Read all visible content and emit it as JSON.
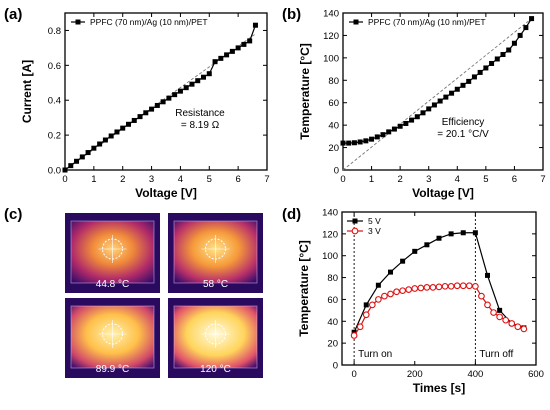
{
  "panels": {
    "a": {
      "letter": "(a)"
    },
    "b": {
      "letter": "(b)"
    },
    "c": {
      "letter": "(c)"
    },
    "d": {
      "letter": "(d)"
    }
  },
  "chart_data": [
    {
      "panel": "(a)",
      "type": "line",
      "title": "",
      "xlabel": "Voltage [V]",
      "ylabel": "Current [A]",
      "xlim": [
        0,
        7
      ],
      "ylim": [
        0,
        0.9
      ],
      "xticks": [
        "0",
        "1",
        "2",
        "3",
        "4",
        "5",
        "6",
        "7"
      ],
      "yticks": [
        "0.0",
        "0.2",
        "0.4",
        "0.6",
        "0.8"
      ],
      "legend": {
        "entries": [
          "PPFC (70 nm)/Ag (10 nm)/PET"
        ],
        "placement": "top-left"
      },
      "annotation": {
        "line1": "Resistance",
        "line2": "= 8.19 Ω"
      },
      "fit_line": {
        "style": "dashed",
        "x": [
          0,
          6.6
        ],
        "y": [
          0,
          0.78
        ]
      },
      "series": [
        {
          "name": "PPFC (70 nm)/Ag (10 nm)/PET",
          "marker": "square",
          "x": [
            0,
            0.2,
            0.4,
            0.6,
            0.8,
            1.0,
            1.2,
            1.4,
            1.6,
            1.8,
            2.0,
            2.2,
            2.4,
            2.6,
            2.8,
            3.0,
            3.2,
            3.4,
            3.6,
            3.8,
            4.0,
            4.2,
            4.4,
            4.6,
            4.8,
            5.0,
            5.2,
            5.4,
            5.6,
            5.8,
            6.0,
            6.2,
            6.4,
            6.6
          ],
          "y": [
            0,
            0.025,
            0.05,
            0.075,
            0.1,
            0.125,
            0.149,
            0.172,
            0.195,
            0.218,
            0.24,
            0.262,
            0.284,
            0.306,
            0.328,
            0.349,
            0.37,
            0.391,
            0.412,
            0.432,
            0.452,
            0.472,
            0.492,
            0.512,
            0.532,
            0.552,
            0.621,
            0.64,
            0.66,
            0.68,
            0.7,
            0.72,
            0.74,
            0.83
          ]
        }
      ]
    },
    {
      "panel": "(b)",
      "type": "line",
      "title": "",
      "xlabel": "Voltage [V]",
      "ylabel": "Temperature [°C]",
      "xlim": [
        0,
        7
      ],
      "ylim": [
        0,
        140
      ],
      "xticks": [
        "0",
        "1",
        "2",
        "3",
        "4",
        "5",
        "6",
        "7"
      ],
      "yticks": [
        "0",
        "20",
        "40",
        "60",
        "80",
        "100",
        "120",
        "140"
      ],
      "legend": {
        "entries": [
          "PPFC (70 nm)/Ag (10 nm)/PET"
        ],
        "placement": "top-left"
      },
      "annotation": {
        "line1": "Efficiency",
        "line2": "= 20.1 °C/V"
      },
      "fit_line": {
        "style": "dashed",
        "x": [
          0,
          6.6
        ],
        "y": [
          0,
          135
        ]
      },
      "series": [
        {
          "name": "PPFC (70 nm)/Ag (10 nm)/PET",
          "marker": "square",
          "x": [
            0,
            0.2,
            0.4,
            0.6,
            0.8,
            1.0,
            1.2,
            1.4,
            1.6,
            1.8,
            2.0,
            2.2,
            2.4,
            2.6,
            2.8,
            3.0,
            3.2,
            3.4,
            3.6,
            3.8,
            4.0,
            4.2,
            4.4,
            4.6,
            4.8,
            5.0,
            5.2,
            5.4,
            5.6,
            5.8,
            6.0,
            6.2,
            6.4,
            6.6
          ],
          "y": [
            24,
            24,
            24.3,
            25,
            26,
            27.5,
            29.5,
            31.5,
            34,
            36.5,
            39,
            41.5,
            44.5,
            47.5,
            51,
            54.5,
            58,
            61.5,
            65,
            68.5,
            72,
            75.5,
            79,
            83,
            87,
            91,
            95,
            99,
            103,
            107,
            113,
            120,
            127,
            135
          ]
        }
      ]
    },
    {
      "panel": "(d)",
      "type": "line",
      "title": "",
      "xlabel": "Times [s]",
      "ylabel": "Temperature [°C]",
      "xlim": [
        -40,
        600
      ],
      "ylim": [
        0,
        140
      ],
      "xticks": [
        "0",
        "200",
        "400",
        "600"
      ],
      "yticks": [
        "0",
        "20",
        "40",
        "60",
        "80",
        "100",
        "120",
        "140"
      ],
      "legend": {
        "entries": [
          "5 V",
          "3 V"
        ],
        "placement": "top-left"
      },
      "annotations": {
        "turn_on": "Turn on",
        "turn_off": "Turn off"
      },
      "vlines_x": [
        0,
        400
      ],
      "series": [
        {
          "name": "5 V",
          "marker": "square",
          "color": "#000000",
          "x": [
            0,
            40,
            80,
            120,
            160,
            200,
            240,
            280,
            320,
            360,
            400,
            440,
            480,
            520,
            560
          ],
          "y": [
            30,
            55,
            73,
            85,
            95,
            104,
            110,
            116,
            120,
            121,
            121,
            82,
            50,
            38,
            34
          ]
        },
        {
          "name": "3 V",
          "marker": "circle",
          "color": "#dd1111",
          "x": [
            0,
            20,
            40,
            60,
            80,
            100,
            120,
            140,
            160,
            180,
            200,
            220,
            240,
            260,
            280,
            300,
            320,
            340,
            360,
            380,
            400,
            420,
            440,
            460,
            480,
            500,
            520,
            540,
            560
          ],
          "y": [
            27,
            35,
            46,
            55,
            60,
            63,
            65,
            67,
            68,
            69,
            70,
            70.5,
            71,
            71,
            71.5,
            72,
            72,
            72.5,
            72.5,
            72.5,
            72,
            63,
            55,
            48,
            44,
            41,
            38,
            35,
            33
          ]
        }
      ]
    }
  ],
  "thermal_images": [
    {
      "caption": "44.8 °C",
      "level": 0.35
    },
    {
      "caption": "58 °C",
      "level": 0.55
    },
    {
      "caption": "89.9 °C",
      "level": 0.8
    },
    {
      "caption": "120 °C",
      "level": 1.0
    }
  ],
  "colors": {
    "line_black": "#000000",
    "line_red": "#dd1111",
    "fit_line": "#777777",
    "thermal_cold": "#2a0a5e",
    "thermal_mid": "#c2185b",
    "thermal_hot": "#ffe066"
  }
}
